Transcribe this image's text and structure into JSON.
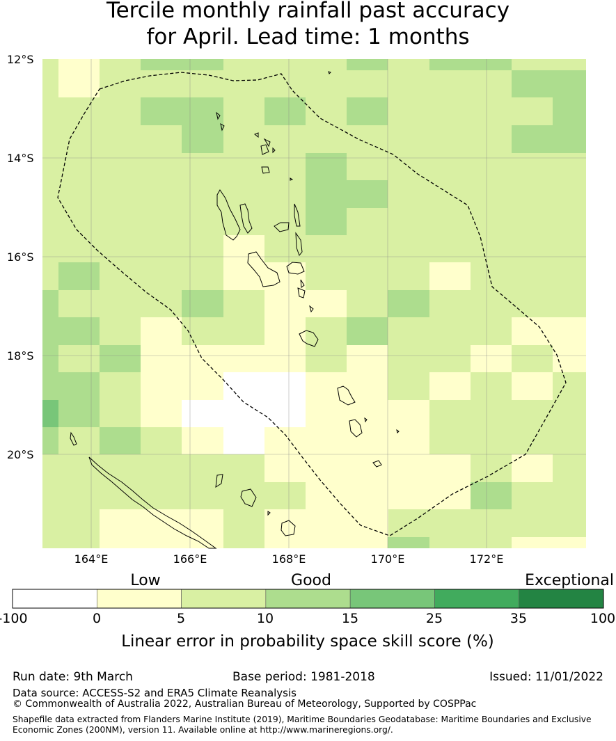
{
  "title": {
    "line1": "Tercile monthly rainfall past accuracy",
    "line2": "for April. Lead time: 1 months"
  },
  "map": {
    "lat_labels": [
      "12°S",
      "14°S",
      "16°S",
      "18°S",
      "20°S"
    ],
    "lon_labels": [
      "164°E",
      "166°E",
      "168°E",
      "170°E",
      "172°E"
    ],
    "lat_range": [
      -21.85,
      -12.0
    ],
    "lon_range": [
      163.0,
      174.0
    ],
    "grid_lines": true,
    "boundary_style": "dashed",
    "colors": {
      "white": "#ffffff",
      "lightyellow": "#ffffcc",
      "palegreen": "#d9f0a3",
      "lightgreen": "#addd8e",
      "green": "#78c679",
      "darkgreen": "#41ab5d",
      "darkestgreen": "#238443"
    }
  },
  "colorbar": {
    "category_labels": [
      "Low",
      "Good",
      "Exceptional"
    ],
    "tick_labels": [
      "-100",
      "0",
      "5",
      "10",
      "15",
      "25",
      "35",
      "100"
    ],
    "segment_colors": [
      "#ffffff",
      "#ffffcc",
      "#d9f0a3",
      "#addd8e",
      "#78c679",
      "#41ab5d",
      "#238443"
    ],
    "axis_label": "Linear error in probability space skill score (%)"
  },
  "footer": {
    "run_date": "Run date: 9th March",
    "base_period": "Base period: 1981-2018",
    "issued": "Issued: 11/01/2022",
    "data_source": "Data source: ACCESS-S2 and ERA5 Climate Reanalysis",
    "copyright": "© Commonwealth of Australia 2022, Australian Bureau of Meteorology, Supported by COSPPac",
    "shapefile_line1": "Shapefile data extracted from Flanders Marine Institute (2019), Maritime Boundaries Geodatabase: Maritime Boundaries and Exclusive",
    "shapefile_line2": "Economic Zones (200NM), version 11. Available online at http://www.marineregions.org/."
  }
}
